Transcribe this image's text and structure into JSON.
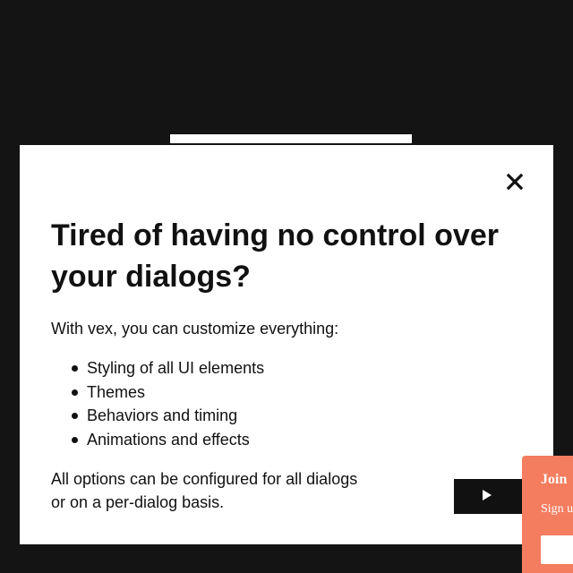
{
  "dialog": {
    "close_icon": "close-icon",
    "title": "Tired of having no control over your dialogs?",
    "intro": "With vex, you can customize everything:",
    "features": [
      "Styling of all UI elements",
      "Themes",
      "Behaviors and timing",
      "Animations and effects"
    ],
    "outro_line1": "All options can be configured for all dialogs",
    "outro_line2": "or on a per-dialog basis.",
    "play_icon": "play-icon"
  },
  "promo": {
    "title": "Join",
    "text": "Sign u",
    "input_value": ""
  },
  "colors": {
    "backdrop": "#141414",
    "dialog_bg": "#ffffff",
    "text": "#111111",
    "button_bg": "#111111",
    "promo_bg": "#f47c5f"
  }
}
